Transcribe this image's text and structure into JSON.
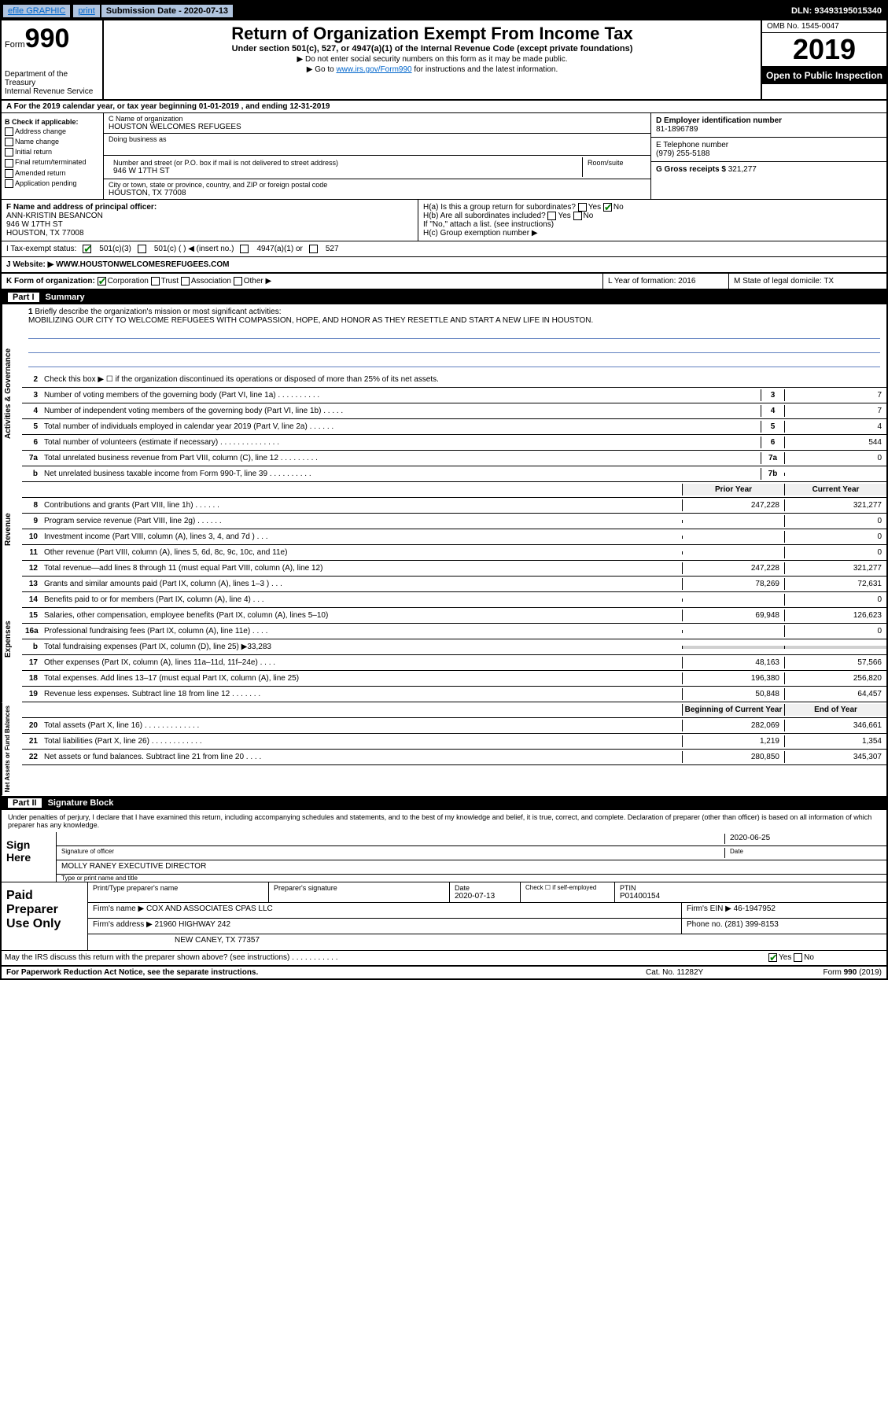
{
  "topbar": {
    "efile": "efile GRAPHIC",
    "print": "print",
    "submission_label": "Submission Date - 2020-07-13",
    "dln": "DLN: 93493195015340"
  },
  "header": {
    "form_prefix": "Form",
    "form_number": "990",
    "dept": "Department of the Treasury\nInternal Revenue Service",
    "title": "Return of Organization Exempt From Income Tax",
    "subtitle": "Under section 501(c), 527, or 4947(a)(1) of the Internal Revenue Code (except private foundations)",
    "inst1": "▶ Do not enter social security numbers on this form as it may be made public.",
    "inst2_pre": "▶ Go to ",
    "inst2_link": "www.irs.gov/Form990",
    "inst2_post": " for instructions and the latest information.",
    "omb": "OMB No. 1545-0047",
    "year": "2019",
    "open": "Open to Public Inspection"
  },
  "period": "A For the 2019 calendar year, or tax year beginning 01-01-2019     , and ending 12-31-2019",
  "section_b": {
    "label": "B Check if applicable:",
    "items": [
      "Address change",
      "Name change",
      "Initial return",
      "Final return/terminated",
      "Amended return",
      "Application pending"
    ]
  },
  "section_c": {
    "name_label": "C Name of organization",
    "name": "HOUSTON WELCOMES REFUGEES",
    "dba_label": "Doing business as",
    "addr_label": "Number and street (or P.O. box if mail is not delivered to street address)",
    "addr": "946 W 17TH ST",
    "room_label": "Room/suite",
    "city_label": "City or town, state or province, country, and ZIP or foreign postal code",
    "city": "HOUSTON, TX  77008"
  },
  "section_d": {
    "label": "D Employer identification number",
    "value": "81-1896789"
  },
  "section_e": {
    "label": "E Telephone number",
    "value": "(979) 255-5188"
  },
  "section_g": {
    "label": "G Gross receipts $",
    "value": "321,277"
  },
  "section_f": {
    "label": "F  Name and address of principal officer:",
    "name": "ANN-KRISTIN BESANCON",
    "addr1": "946 W 17TH ST",
    "addr2": "HOUSTON, TX  77008"
  },
  "section_h": {
    "ha": "H(a)  Is this a group return for subordinates?",
    "hb": "H(b)  Are all subordinates included?",
    "hb_note": "If \"No,\" attach a list. (see instructions)",
    "hc": "H(c)  Group exemption number ▶",
    "yes": "Yes",
    "no": "No"
  },
  "tax_status": {
    "label": "I   Tax-exempt status:",
    "opts": [
      "501(c)(3)",
      "501(c) (  ) ◀ (insert no.)",
      "4947(a)(1) or",
      "527"
    ]
  },
  "website": {
    "label": "J   Website: ▶",
    "value": "WWW.HOUSTONWELCOMESREFUGEES.COM"
  },
  "form_org": {
    "k": "K Form of organization:",
    "opts": [
      "Corporation",
      "Trust",
      "Association",
      "Other ▶"
    ],
    "l": "L Year of formation: 2016",
    "m": "M State of legal domicile: TX"
  },
  "part1": {
    "label": "Part I",
    "title": "Summary"
  },
  "mission": {
    "num": "1",
    "label": "Briefly describe the organization's mission or most significant activities:",
    "text": "MOBILIZING OUR CITY TO WELCOME REFUGEES WITH COMPASSION, HOPE, AND HONOR AS THEY RESETTLE AND START A NEW LIFE IN HOUSTON."
  },
  "lines_gov": [
    {
      "n": "2",
      "t": "Check this box ▶ ☐  if the organization discontinued its operations or disposed of more than 25% of its net assets."
    },
    {
      "n": "3",
      "t": "Number of voting members of the governing body (Part VI, line 1a)  .   .   .   .   .   .   .   .   .   .",
      "b": "3",
      "v": "7"
    },
    {
      "n": "4",
      "t": "Number of independent voting members of the governing body (Part VI, line 1b)   .   .   .   .   .",
      "b": "4",
      "v": "7"
    },
    {
      "n": "5",
      "t": "Total number of individuals employed in calendar year 2019 (Part V, line 2a)   .   .   .   .   .   .",
      "b": "5",
      "v": "4"
    },
    {
      "n": "6",
      "t": "Total number of volunteers (estimate if necessary)    .   .   .   .   .   .   .   .   .   .   .   .   .   .",
      "b": "6",
      "v": "544"
    },
    {
      "n": "7a",
      "t": "Total unrelated business revenue from Part VIII, column (C), line 12   .   .   .   .   .   .   .   .   .",
      "b": "7a",
      "v": "0"
    },
    {
      "n": "b",
      "t": "Net unrelated business taxable income from Form 990-T, line 39    .   .   .   .   .   .   .   .   .   .",
      "b": "7b",
      "v": ""
    }
  ],
  "prior_label": "Prior Year",
  "current_label": "Current Year",
  "lines_rev": [
    {
      "n": "8",
      "t": "Contributions and grants (Part VIII, line 1h)    .   .   .   .   .   .",
      "p": "247,228",
      "c": "321,277"
    },
    {
      "n": "9",
      "t": "Program service revenue (Part VIII, line 2g)    .   .   .   .   .   .",
      "p": "",
      "c": "0"
    },
    {
      "n": "10",
      "t": "Investment income (Part VIII, column (A), lines 3, 4, and 7d )    .   .   .",
      "p": "",
      "c": "0"
    },
    {
      "n": "11",
      "t": "Other revenue (Part VIII, column (A), lines 5, 6d, 8c, 9c, 10c, and 11e)",
      "p": "",
      "c": "0"
    },
    {
      "n": "12",
      "t": "Total revenue—add lines 8 through 11 (must equal Part VIII, column (A), line 12)",
      "p": "247,228",
      "c": "321,277"
    }
  ],
  "lines_exp": [
    {
      "n": "13",
      "t": "Grants and similar amounts paid (Part IX, column (A), lines 1–3 )   .   .   .",
      "p": "78,269",
      "c": "72,631"
    },
    {
      "n": "14",
      "t": "Benefits paid to or for members (Part IX, column (A), line 4)   .   .   .",
      "p": "",
      "c": "0"
    },
    {
      "n": "15",
      "t": "Salaries, other compensation, employee benefits (Part IX, column (A), lines 5–10)",
      "p": "69,948",
      "c": "126,623"
    },
    {
      "n": "16a",
      "t": "Professional fundraising fees (Part IX, column (A), line 11e)   .   .   .   .",
      "p": "",
      "c": "0"
    },
    {
      "n": "b",
      "t": "Total fundraising expenses (Part IX, column (D), line 25) ▶33,283",
      "shaded": true
    },
    {
      "n": "17",
      "t": "Other expenses (Part IX, column (A), lines 11a–11d, 11f–24e)   .   .   .   .",
      "p": "48,163",
      "c": "57,566"
    },
    {
      "n": "18",
      "t": "Total expenses. Add lines 13–17 (must equal Part IX, column (A), line 25)",
      "p": "196,380",
      "c": "256,820"
    },
    {
      "n": "19",
      "t": "Revenue less expenses. Subtract line 18 from line 12   .   .   .   .   .   .   .",
      "p": "50,848",
      "c": "64,457"
    }
  ],
  "begin_label": "Beginning of Current Year",
  "end_label": "End of Year",
  "lines_net": [
    {
      "n": "20",
      "t": "Total assets (Part X, line 16)   .   .   .   .   .   .   .   .   .   .   .   .   .",
      "p": "282,069",
      "c": "346,661"
    },
    {
      "n": "21",
      "t": "Total liabilities (Part X, line 26)   .   .   .   .   .   .   .   .   .   .   .   .",
      "p": "1,219",
      "c": "1,354"
    },
    {
      "n": "22",
      "t": "Net assets or fund balances. Subtract line 21 from line 20   .   .   .   .",
      "p": "280,850",
      "c": "345,307"
    }
  ],
  "vtabs": {
    "gov": "Activities & Governance",
    "rev": "Revenue",
    "exp": "Expenses",
    "net": "Net Assets or Fund Balances"
  },
  "part2": {
    "label": "Part II",
    "title": "Signature Block"
  },
  "sig": {
    "penalty": "Under penalties of perjury, I declare that I have examined this return, including accompanying schedules and statements, and to the best of my knowledge and belief, it is true, correct, and complete. Declaration of preparer (other than officer) is based on all information of which preparer has any knowledge.",
    "sign_here": "Sign Here",
    "sig_officer": "Signature of officer",
    "date": "Date",
    "date_val": "2020-06-25",
    "name_title": "MOLLY RANEY  EXECUTIVE DIRECTOR",
    "type_label": "Type or print name and title"
  },
  "prep": {
    "label": "Paid Preparer Use Only",
    "name_label": "Print/Type preparer's name",
    "sig_label": "Preparer's signature",
    "date_label": "Date",
    "date_val": "2020-07-13",
    "check_label": "Check ☐ if self-employed",
    "ptin_label": "PTIN",
    "ptin": "P01400154",
    "firm_name_label": "Firm's name    ▶",
    "firm_name": "COX AND ASSOCIATES CPAS LLC",
    "firm_ein_label": "Firm's EIN ▶",
    "firm_ein": "46-1947952",
    "firm_addr_label": "Firm's address ▶",
    "firm_addr1": "21960 HIGHWAY 242",
    "firm_addr2": "NEW CANEY, TX  77357",
    "phone_label": "Phone no.",
    "phone": "(281) 399-8153"
  },
  "discuss": "May the IRS discuss this return with the preparer shown above? (see instructions)    .   .   .   .   .   .   .   .   .   .   .",
  "footer": {
    "left": "For Paperwork Reduction Act Notice, see the separate instructions.",
    "mid": "Cat. No. 11282Y",
    "right": "Form 990 (2019)"
  }
}
